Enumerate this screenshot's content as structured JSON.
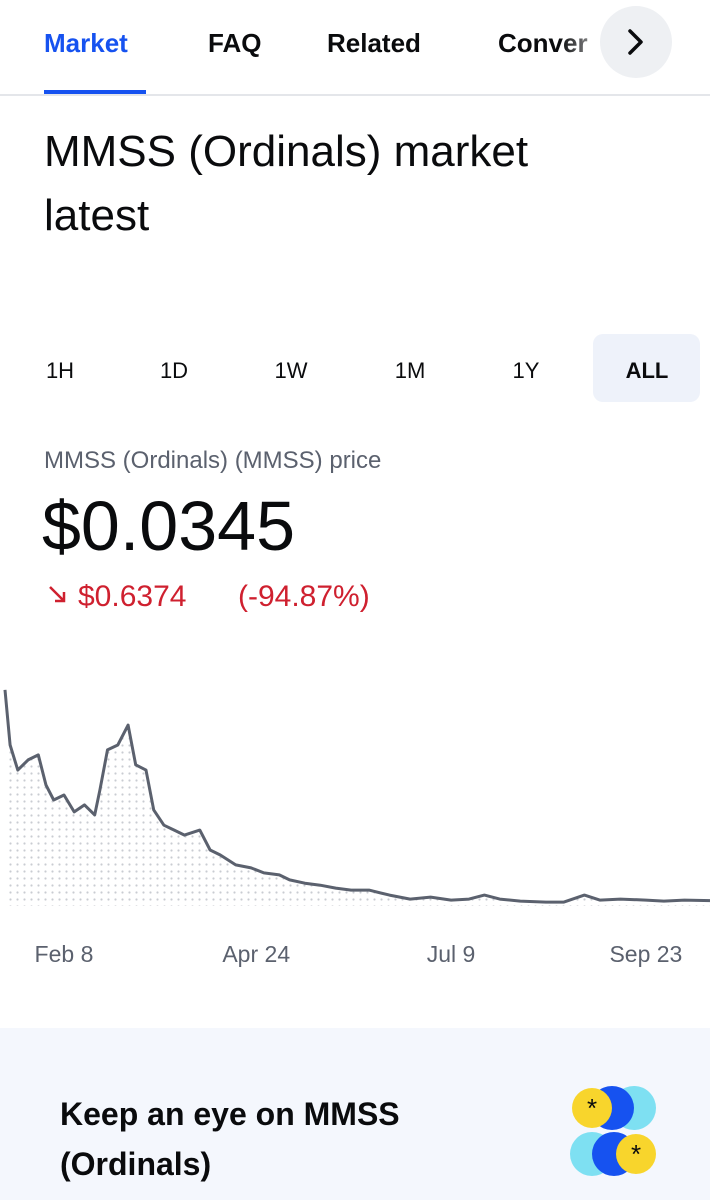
{
  "tabs": [
    "Market",
    "FAQ",
    "Related",
    "Conver"
  ],
  "title_lines": [
    "MMSS (Ordinals) market",
    "latest"
  ],
  "ranges": [
    "1H",
    "1D",
    "1W",
    "1M",
    "1Y",
    "ALL"
  ],
  "price_label": "MMSS (Ordinals) (MMSS) price",
  "price": "$0.0345",
  "change": "$0.6374",
  "change_pct": "(-94.87%)",
  "card_lines": [
    "Keep an eye on MMSS",
    "(Ordinals)"
  ],
  "chart_data": {
    "type": "line",
    "color": "#5b616e",
    "x": [
      16,
      18,
      21,
      25,
      29,
      32,
      35,
      39,
      43,
      47,
      51,
      53,
      56,
      60,
      64,
      67,
      71,
      74,
      78,
      82,
      86,
      92,
      96,
      100,
      106,
      112,
      117,
      123,
      127,
      133,
      139,
      145,
      151,
      158,
      166,
      174,
      182,
      190,
      197,
      203,
      209,
      217,
      227,
      234,
      242,
      248,
      256,
      266,
      273,
      281,
      291
    ],
    "values": [
      0.67,
      0.504,
      0.428,
      0.459,
      0.474,
      0.383,
      0.338,
      0.353,
      0.302,
      0.323,
      0.293,
      0.368,
      0.489,
      0.504,
      0.564,
      0.444,
      0.428,
      0.308,
      0.262,
      0.247,
      0.232,
      0.247,
      0.187,
      0.172,
      0.142,
      0.133,
      0.118,
      0.112,
      0.097,
      0.087,
      0.081,
      0.072,
      0.066,
      0.066,
      0.051,
      0.039,
      0.045,
      0.036,
      0.039,
      0.051,
      0.039,
      0.033,
      0.03,
      0.03,
      0.051,
      0.036,
      0.039,
      0.036,
      0.033,
      0.036,
      0.0345
    ],
    "xlim": [
      16,
      291
    ],
    "ylim": [
      0,
      0.7
    ],
    "xticks": [
      {
        "value": 39,
        "label": "Feb 8"
      },
      {
        "value": 114,
        "label": "Apr 24"
      },
      {
        "value": 190,
        "label": "Jul 9"
      },
      {
        "value": 266,
        "label": "Sep 23"
      }
    ]
  }
}
